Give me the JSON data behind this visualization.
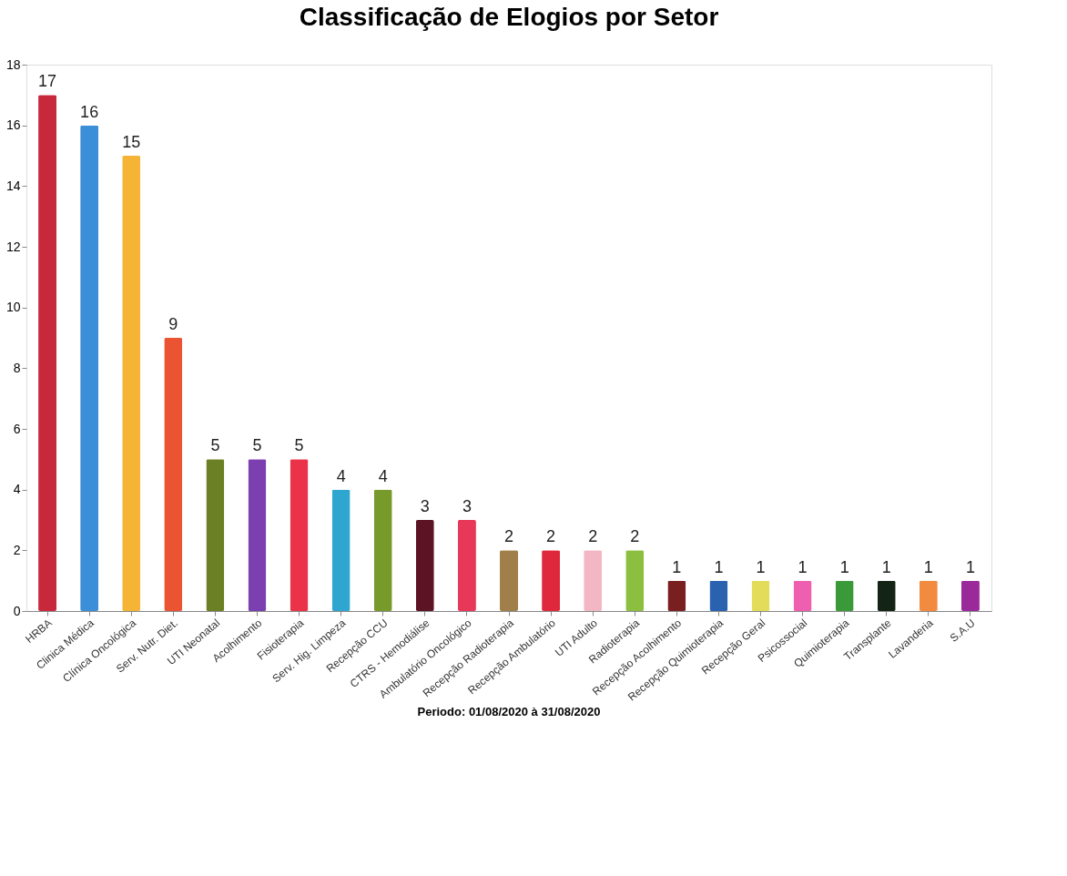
{
  "chart_data": {
    "type": "bar",
    "title": "Classificação de Elogios por Setor",
    "categories": [
      "HRBA",
      "Clinica Médica",
      "Clínica Oncológica",
      "Serv. Nutr. Diet.",
      "UTI Neonatal",
      "Acolhimento",
      "Fisioterapia",
      "Serv. Hig. Limpeza",
      "Recepção CCU",
      "CTRS - Hemodiálise",
      "Ambulatório Oncológico",
      "Recepção Radioterapia",
      "Recepção Ambulatório",
      "UTI Adulto",
      "Radioterapia",
      "Recepção Acolhimento",
      "Recepção Quimioterapia",
      "Recepção Geral",
      "Psicossocial",
      "Quimioterapia",
      "Transplante",
      "Lavanderia",
      "S.A.U"
    ],
    "values": [
      17,
      16,
      15,
      9,
      5,
      5,
      5,
      4,
      4,
      3,
      3,
      2,
      2,
      2,
      2,
      1,
      1,
      1,
      1,
      1,
      1,
      1,
      1
    ],
    "colors": [
      "#c8283c",
      "#3a8fd8",
      "#f5b435",
      "#ea5432",
      "#6b7f25",
      "#7b3fb0",
      "#ea3348",
      "#2ea6cf",
      "#779a2a",
      "#5c1424",
      "#e8385a",
      "#a07f4a",
      "#e0283c",
      "#f3b6c4",
      "#8cbf3f",
      "#7a1f20",
      "#2a62b0",
      "#e2dc5a",
      "#ee5fb0",
      "#3a9a3a",
      "#142414",
      "#f28a40",
      "#9a2a9a"
    ],
    "ylim": [
      0,
      18
    ],
    "yticks": [
      0,
      2,
      4,
      6,
      8,
      10,
      12,
      14,
      16,
      18
    ],
    "grid": false,
    "data_labels": true,
    "annotations": [
      "Periodo: 01/08/2020 à 31/08/2020"
    ]
  }
}
